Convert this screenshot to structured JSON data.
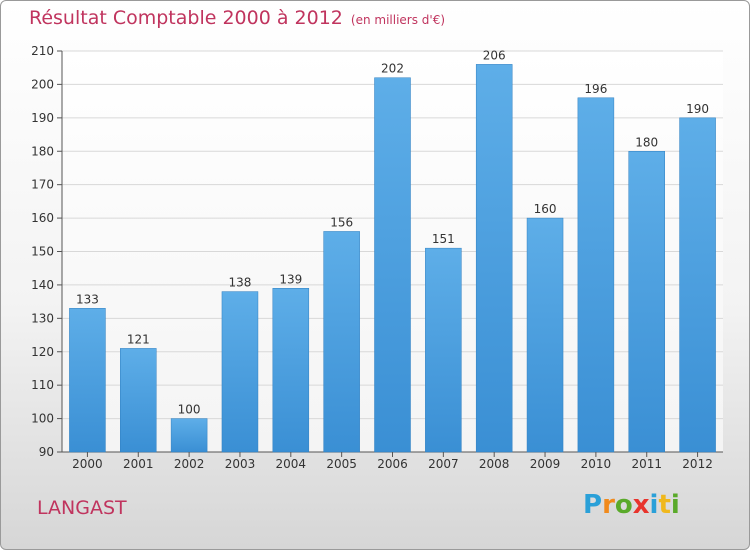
{
  "title": "Résultat Comptable 2000 à 2012",
  "subtitle": "(en milliers d'€)",
  "place": "LANGAST",
  "logo": {
    "text": "Proxiti",
    "letters": [
      {
        "ch": "P",
        "color": "#2aa0d8"
      },
      {
        "ch": "r",
        "color": "#f08a1c"
      },
      {
        "ch": "o",
        "color": "#5aaa2a"
      },
      {
        "ch": "x",
        "color": "#e8342c"
      },
      {
        "ch": "i",
        "color": "#2aa0d8"
      },
      {
        "ch": "t",
        "color": "#f0b81c"
      },
      {
        "ch": "i",
        "color": "#5aaa2a"
      }
    ]
  },
  "colors": {
    "bar": "#3a8fd4",
    "bar_light": "#5eaee8",
    "title": "#c0345e",
    "grid": "#d8d8d8"
  },
  "chart_data": {
    "type": "bar",
    "categories": [
      "2000",
      "2001",
      "2002",
      "2003",
      "2004",
      "2005",
      "2006",
      "2007",
      "2008",
      "2009",
      "2010",
      "2011",
      "2012"
    ],
    "values": [
      133,
      121,
      100,
      138,
      139,
      156,
      202,
      151,
      206,
      160,
      196,
      180,
      190
    ],
    "ylim": [
      90,
      210
    ],
    "yticks": [
      90,
      100,
      110,
      120,
      130,
      140,
      150,
      160,
      170,
      180,
      190,
      200,
      210
    ],
    "grid": true
  }
}
